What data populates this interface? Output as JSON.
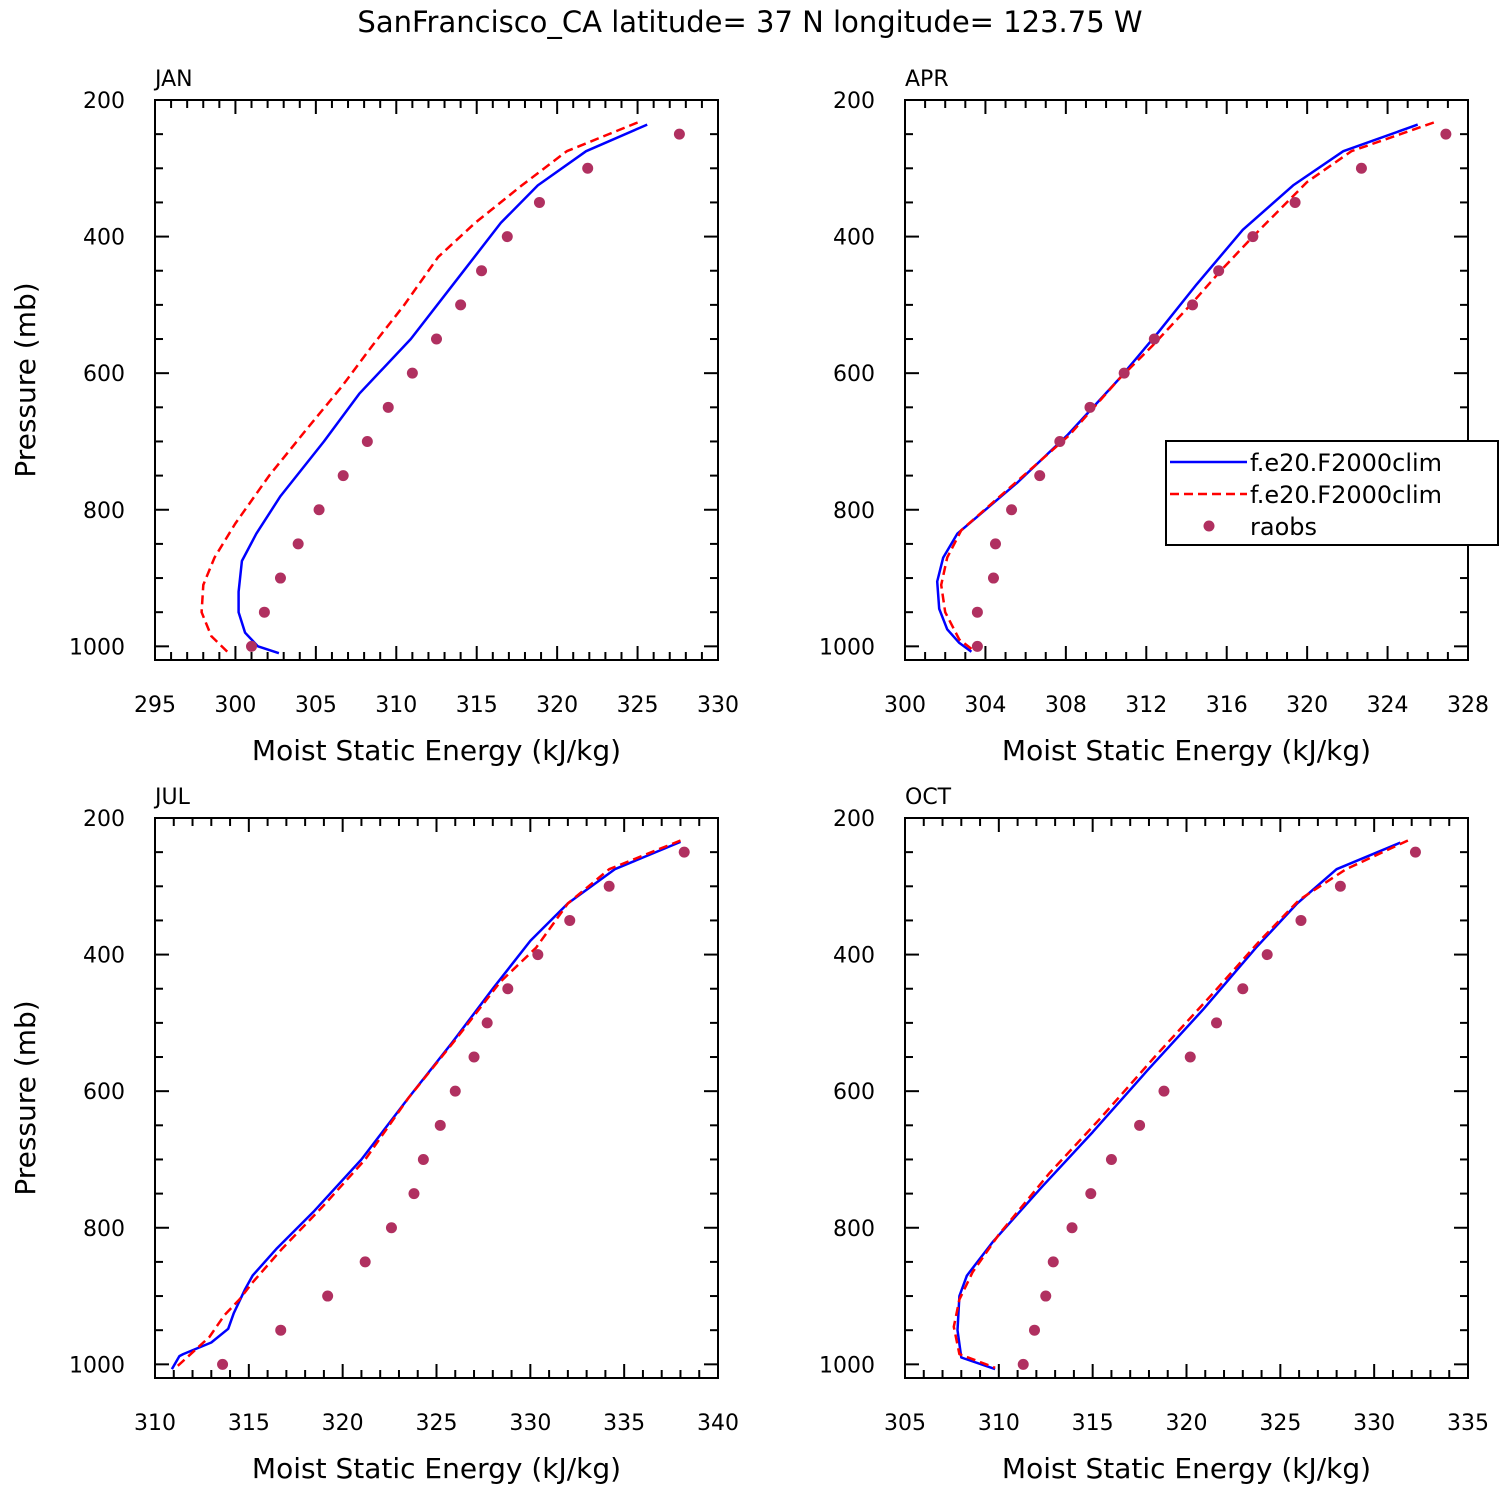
{
  "title": "SanFrancisco_CA  latitude= 37 N longitude= 123.75 W",
  "colors": {
    "model1": "#0000ff",
    "model2": "#ff0000",
    "raobs": "#b03060"
  },
  "legend": {
    "entries": [
      {
        "label": "f.e20.F2000clim",
        "style": "solid",
        "color": "#0000ff"
      },
      {
        "label": "f.e20.F2000clim",
        "style": "dashed",
        "color": "#ff0000"
      },
      {
        "label": "raobs",
        "style": "dot",
        "color": "#b03060"
      }
    ],
    "panel": 1,
    "placement": "right"
  },
  "chart_data": [
    {
      "type": "line",
      "label": "JAN",
      "xlabel": "Moist Static Energy (kJ/kg)",
      "ylabel": "Pressure (mb)",
      "xlim": [
        295,
        330
      ],
      "xticks": [
        295,
        300,
        305,
        310,
        315,
        320,
        325,
        330
      ],
      "xminor": 1,
      "ylim": [
        200,
        1020
      ],
      "yticks": [
        200,
        400,
        600,
        800,
        1000
      ],
      "yinvert": true,
      "series": [
        {
          "style": "solid",
          "color": "#0000ff",
          "points": [
            [
              325.6,
              236
            ],
            [
              321.8,
              275
            ],
            [
              318.8,
              325
            ],
            [
              316.5,
              380
            ],
            [
              314.2,
              450
            ],
            [
              310.9,
              550
            ],
            [
              307.7,
              630
            ],
            [
              305.5,
              700
            ],
            [
              302.8,
              780
            ],
            [
              301.3,
              835
            ],
            [
              300.4,
              875
            ],
            [
              300.2,
              920
            ],
            [
              300.2,
              950
            ],
            [
              300.6,
              980
            ],
            [
              301.4,
              1000
            ],
            [
              302.7,
              1010
            ]
          ]
        },
        {
          "style": "dashed",
          "color": "#ff0000",
          "points": [
            [
              325.0,
              233
            ],
            [
              320.6,
              275
            ],
            [
              317.8,
              325
            ],
            [
              314.9,
              380
            ],
            [
              312.6,
              430
            ],
            [
              310.5,
              500
            ],
            [
              308.5,
              560
            ],
            [
              306.6,
              620
            ],
            [
              304.5,
              680
            ],
            [
              302.1,
              750
            ],
            [
              300.0,
              820
            ],
            [
              298.7,
              870
            ],
            [
              298.0,
              910
            ],
            [
              297.9,
              950
            ],
            [
              298.5,
              985
            ],
            [
              299.5,
              1008
            ]
          ]
        },
        {
          "style": "dot",
          "color": "#b03060",
          "points": [
            [
              327.6,
              250
            ],
            [
              321.9,
              300
            ],
            [
              318.9,
              350
            ],
            [
              316.9,
              400
            ],
            [
              315.3,
              450
            ],
            [
              314.0,
              500
            ],
            [
              312.5,
              550
            ],
            [
              311.0,
              600
            ],
            [
              309.5,
              650
            ],
            [
              308.2,
              700
            ],
            [
              306.7,
              750
            ],
            [
              305.2,
              800
            ],
            [
              303.9,
              850
            ],
            [
              302.8,
              900
            ],
            [
              301.8,
              950
            ],
            [
              301.0,
              1000
            ]
          ]
        }
      ]
    },
    {
      "type": "line",
      "label": "APR",
      "xlabel": "Moist Static Energy (kJ/kg)",
      "ylabel": "",
      "xlim": [
        300,
        328
      ],
      "xticks": [
        300,
        304,
        308,
        312,
        316,
        320,
        324,
        328
      ],
      "xminor": 1,
      "ylim": [
        200,
        1020
      ],
      "yticks": [
        200,
        400,
        600,
        800,
        1000
      ],
      "yinvert": true,
      "series": [
        {
          "style": "solid",
          "color": "#0000ff",
          "points": [
            [
              325.5,
              236
            ],
            [
              321.8,
              275
            ],
            [
              319.3,
              325
            ],
            [
              316.8,
              390
            ],
            [
              314.5,
              470
            ],
            [
              312.6,
              540
            ],
            [
              310.6,
              610
            ],
            [
              308.1,
              690
            ],
            [
              305.6,
              760
            ],
            [
              302.6,
              835
            ],
            [
              301.9,
              870
            ],
            [
              301.6,
              905
            ],
            [
              301.7,
              945
            ],
            [
              302.1,
              975
            ],
            [
              302.7,
              995
            ],
            [
              303.3,
              1008
            ]
          ]
        },
        {
          "style": "dashed",
          "color": "#ff0000",
          "points": [
            [
              326.3,
              233
            ],
            [
              322.2,
              275
            ],
            [
              320.0,
              320
            ],
            [
              317.3,
              400
            ],
            [
              315.7,
              450
            ],
            [
              314.2,
              500
            ],
            [
              312.3,
              560
            ],
            [
              310.6,
              610
            ],
            [
              308.2,
              690
            ],
            [
              305.9,
              750
            ],
            [
              302.8,
              830
            ],
            [
              302.1,
              870
            ],
            [
              301.8,
              910
            ],
            [
              302.0,
              950
            ],
            [
              302.7,
              990
            ],
            [
              303.4,
              1006
            ]
          ]
        },
        {
          "style": "dot",
          "color": "#b03060",
          "points": [
            [
              326.9,
              250
            ],
            [
              322.7,
              300
            ],
            [
              319.4,
              350
            ],
            [
              317.3,
              400
            ],
            [
              315.6,
              450
            ],
            [
              314.3,
              500
            ],
            [
              312.4,
              550
            ],
            [
              310.9,
              600
            ],
            [
              309.2,
              650
            ],
            [
              307.7,
              700
            ],
            [
              306.7,
              750
            ],
            [
              305.3,
              800
            ],
            [
              304.5,
              850
            ],
            [
              304.4,
              900
            ],
            [
              303.6,
              950
            ],
            [
              303.6,
              1000
            ]
          ]
        }
      ]
    },
    {
      "type": "line",
      "label": "JUL",
      "xlabel": "Moist Static Energy (kJ/kg)",
      "ylabel": "Pressure (mb)",
      "xlim": [
        310,
        340
      ],
      "xticks": [
        310,
        315,
        320,
        325,
        330,
        335,
        340
      ],
      "xminor": 1,
      "ylim": [
        200,
        1020
      ],
      "yticks": [
        200,
        400,
        600,
        800,
        1000
      ],
      "yinvert": true,
      "series": [
        {
          "style": "solid",
          "color": "#0000ff",
          "points": [
            [
              338.0,
              235
            ],
            [
              334.5,
              275
            ],
            [
              332.0,
              325
            ],
            [
              330.0,
              380
            ],
            [
              328.0,
              450
            ],
            [
              325.8,
              530
            ],
            [
              323.5,
              610
            ],
            [
              321.0,
              700
            ],
            [
              318.5,
              775
            ],
            [
              316.5,
              830
            ],
            [
              315.2,
              870
            ],
            [
              314.8,
              890
            ],
            [
              314.2,
              925
            ],
            [
              313.9,
              948
            ],
            [
              313.0,
              968
            ],
            [
              311.5,
              985
            ],
            [
              311.3,
              988
            ],
            [
              310.9,
              1007
            ]
          ]
        },
        {
          "style": "dashed",
          "color": "#ff0000",
          "points": [
            [
              338.0,
              233
            ],
            [
              334.2,
              275
            ],
            [
              332.0,
              325
            ],
            [
              330.3,
              390
            ],
            [
              328.4,
              440
            ],
            [
              326.0,
              525
            ],
            [
              323.5,
              610
            ],
            [
              321.2,
              700
            ],
            [
              318.9,
              770
            ],
            [
              316.8,
              830
            ],
            [
              315.2,
              880
            ],
            [
              314.5,
              905
            ],
            [
              313.7,
              928
            ],
            [
              312.9,
              960
            ],
            [
              311.9,
              985
            ],
            [
              311.1,
              1005
            ]
          ]
        },
        {
          "style": "dot",
          "color": "#b03060",
          "points": [
            [
              338.2,
              250
            ],
            [
              334.2,
              300
            ],
            [
              332.1,
              350
            ],
            [
              330.4,
              400
            ],
            [
              328.8,
              450
            ],
            [
              327.7,
              500
            ],
            [
              327.0,
              550
            ],
            [
              326.0,
              600
            ],
            [
              325.2,
              650
            ],
            [
              324.3,
              700
            ],
            [
              323.8,
              750
            ],
            [
              322.6,
              800
            ],
            [
              321.2,
              850
            ],
            [
              319.2,
              900
            ],
            [
              316.7,
              950
            ],
            [
              313.6,
              1000
            ]
          ]
        }
      ]
    },
    {
      "type": "line",
      "label": "OCT",
      "xlabel": "Moist Static Energy (kJ/kg)",
      "ylabel": "",
      "xlim": [
        305,
        335
      ],
      "xticks": [
        305,
        310,
        315,
        320,
        325,
        330,
        335
      ],
      "xminor": 1,
      "ylim": [
        200,
        1020
      ],
      "yticks": [
        200,
        400,
        600,
        800,
        1000
      ],
      "yinvert": true,
      "series": [
        {
          "style": "solid",
          "color": "#0000ff",
          "points": [
            [
              331.4,
              236
            ],
            [
              328.0,
              275
            ],
            [
              325.9,
              325
            ],
            [
              323.7,
              390
            ],
            [
              320.9,
              480
            ],
            [
              317.9,
              570
            ],
            [
              315.0,
              660
            ],
            [
              312.3,
              740
            ],
            [
              309.7,
              820
            ],
            [
              308.3,
              870
            ],
            [
              307.9,
              900
            ],
            [
              307.8,
              950
            ],
            [
              308.0,
              990
            ],
            [
              309.8,
              1007
            ]
          ]
        },
        {
          "style": "dashed",
          "color": "#ff0000",
          "points": [
            [
              331.8,
              233
            ],
            [
              328.5,
              275
            ],
            [
              326.0,
              320
            ],
            [
              323.9,
              380
            ],
            [
              321.3,
              460
            ],
            [
              318.3,
              550
            ],
            [
              315.4,
              640
            ],
            [
              312.7,
              720
            ],
            [
              310.0,
              810
            ],
            [
              308.6,
              865
            ],
            [
              307.9,
              905
            ],
            [
              307.6,
              945
            ],
            [
              307.9,
              985
            ],
            [
              309.8,
              1005
            ]
          ]
        },
        {
          "style": "dot",
          "color": "#b03060",
          "points": [
            [
              332.2,
              250
            ],
            [
              328.2,
              300
            ],
            [
              326.1,
              350
            ],
            [
              324.3,
              400
            ],
            [
              323.0,
              450
            ],
            [
              321.6,
              500
            ],
            [
              320.2,
              550
            ],
            [
              318.8,
              600
            ],
            [
              317.5,
              650
            ],
            [
              316.0,
              700
            ],
            [
              314.9,
              750
            ],
            [
              313.9,
              800
            ],
            [
              312.9,
              850
            ],
            [
              312.5,
              900
            ],
            [
              311.9,
              950
            ],
            [
              311.3,
              1000
            ]
          ]
        }
      ]
    }
  ]
}
